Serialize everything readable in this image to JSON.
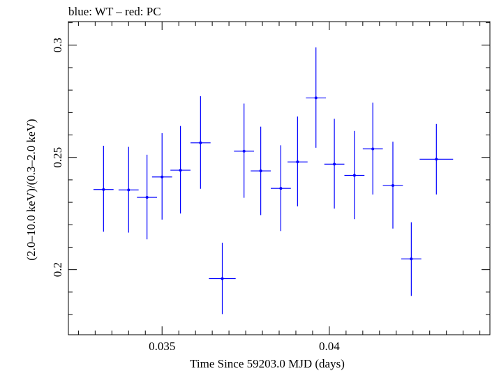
{
  "chart_data": {
    "type": "scatter",
    "title": "blue: WT – red: PC",
    "xlabel": "Time Since 59203.0 MJD (days)",
    "ylabel": "(2.0–10.0 keV)/(0.3–2.0 keV)",
    "xlim": [
      0.0322,
      0.0448
    ],
    "ylim": [
      0.171,
      0.3105
    ],
    "x_ticks": [
      0.035,
      0.04
    ],
    "x_tick_labels": [
      "0.035",
      "0.04"
    ],
    "y_ticks": [
      0.2,
      0.25,
      0.3
    ],
    "y_tick_labels": [
      "0.2",
      "0.25",
      "0.3"
    ],
    "grid": false,
    "series": [
      {
        "color": "#0000ff",
        "points": [
          {
            "x": 0.03325,
            "xerr": 0.0003,
            "y": 0.2357,
            "yerr_low": 0.0188,
            "yerr_high": 0.0195
          },
          {
            "x": 0.034,
            "xerr": 0.0003,
            "y": 0.2355,
            "yerr_low": 0.019,
            "yerr_high": 0.0192
          },
          {
            "x": 0.03455,
            "xerr": 0.0003,
            "y": 0.2322,
            "yerr_low": 0.0187,
            "yerr_high": 0.019
          },
          {
            "x": 0.035,
            "xerr": 0.0003,
            "y": 0.2413,
            "yerr_low": 0.019,
            "yerr_high": 0.0195
          },
          {
            "x": 0.03555,
            "xerr": 0.0003,
            "y": 0.2443,
            "yerr_low": 0.0193,
            "yerr_high": 0.0197
          },
          {
            "x": 0.03615,
            "xerr": 0.0003,
            "y": 0.2565,
            "yerr_low": 0.0205,
            "yerr_high": 0.0208
          },
          {
            "x": 0.0368,
            "xerr": 0.0004,
            "y": 0.196,
            "yerr_low": 0.0158,
            "yerr_high": 0.016
          },
          {
            "x": 0.03745,
            "xerr": 0.0003,
            "y": 0.2528,
            "yerr_low": 0.0208,
            "yerr_high": 0.0212
          },
          {
            "x": 0.03795,
            "xerr": 0.0003,
            "y": 0.244,
            "yerr_low": 0.0197,
            "yerr_high": 0.0197
          },
          {
            "x": 0.03855,
            "xerr": 0.0003,
            "y": 0.2362,
            "yerr_low": 0.019,
            "yerr_high": 0.0192
          },
          {
            "x": 0.03905,
            "xerr": 0.0003,
            "y": 0.248,
            "yerr_low": 0.0198,
            "yerr_high": 0.0202
          },
          {
            "x": 0.0396,
            "xerr": 0.0003,
            "y": 0.2765,
            "yerr_low": 0.0222,
            "yerr_high": 0.0225
          },
          {
            "x": 0.04015,
            "xerr": 0.0003,
            "y": 0.247,
            "yerr_low": 0.0198,
            "yerr_high": 0.0202
          },
          {
            "x": 0.04075,
            "xerr": 0.0003,
            "y": 0.242,
            "yerr_low": 0.0195,
            "yerr_high": 0.0198
          },
          {
            "x": 0.0413,
            "xerr": 0.0003,
            "y": 0.2538,
            "yerr_low": 0.0203,
            "yerr_high": 0.0206
          },
          {
            "x": 0.0419,
            "xerr": 0.0003,
            "y": 0.2375,
            "yerr_low": 0.0192,
            "yerr_high": 0.0195
          },
          {
            "x": 0.04245,
            "xerr": 0.0003,
            "y": 0.2048,
            "yerr_low": 0.0165,
            "yerr_high": 0.0163
          },
          {
            "x": 0.0432,
            "xerr": 0.0005,
            "y": 0.2492,
            "yerr_low": 0.0157,
            "yerr_high": 0.0157
          }
        ]
      }
    ]
  }
}
